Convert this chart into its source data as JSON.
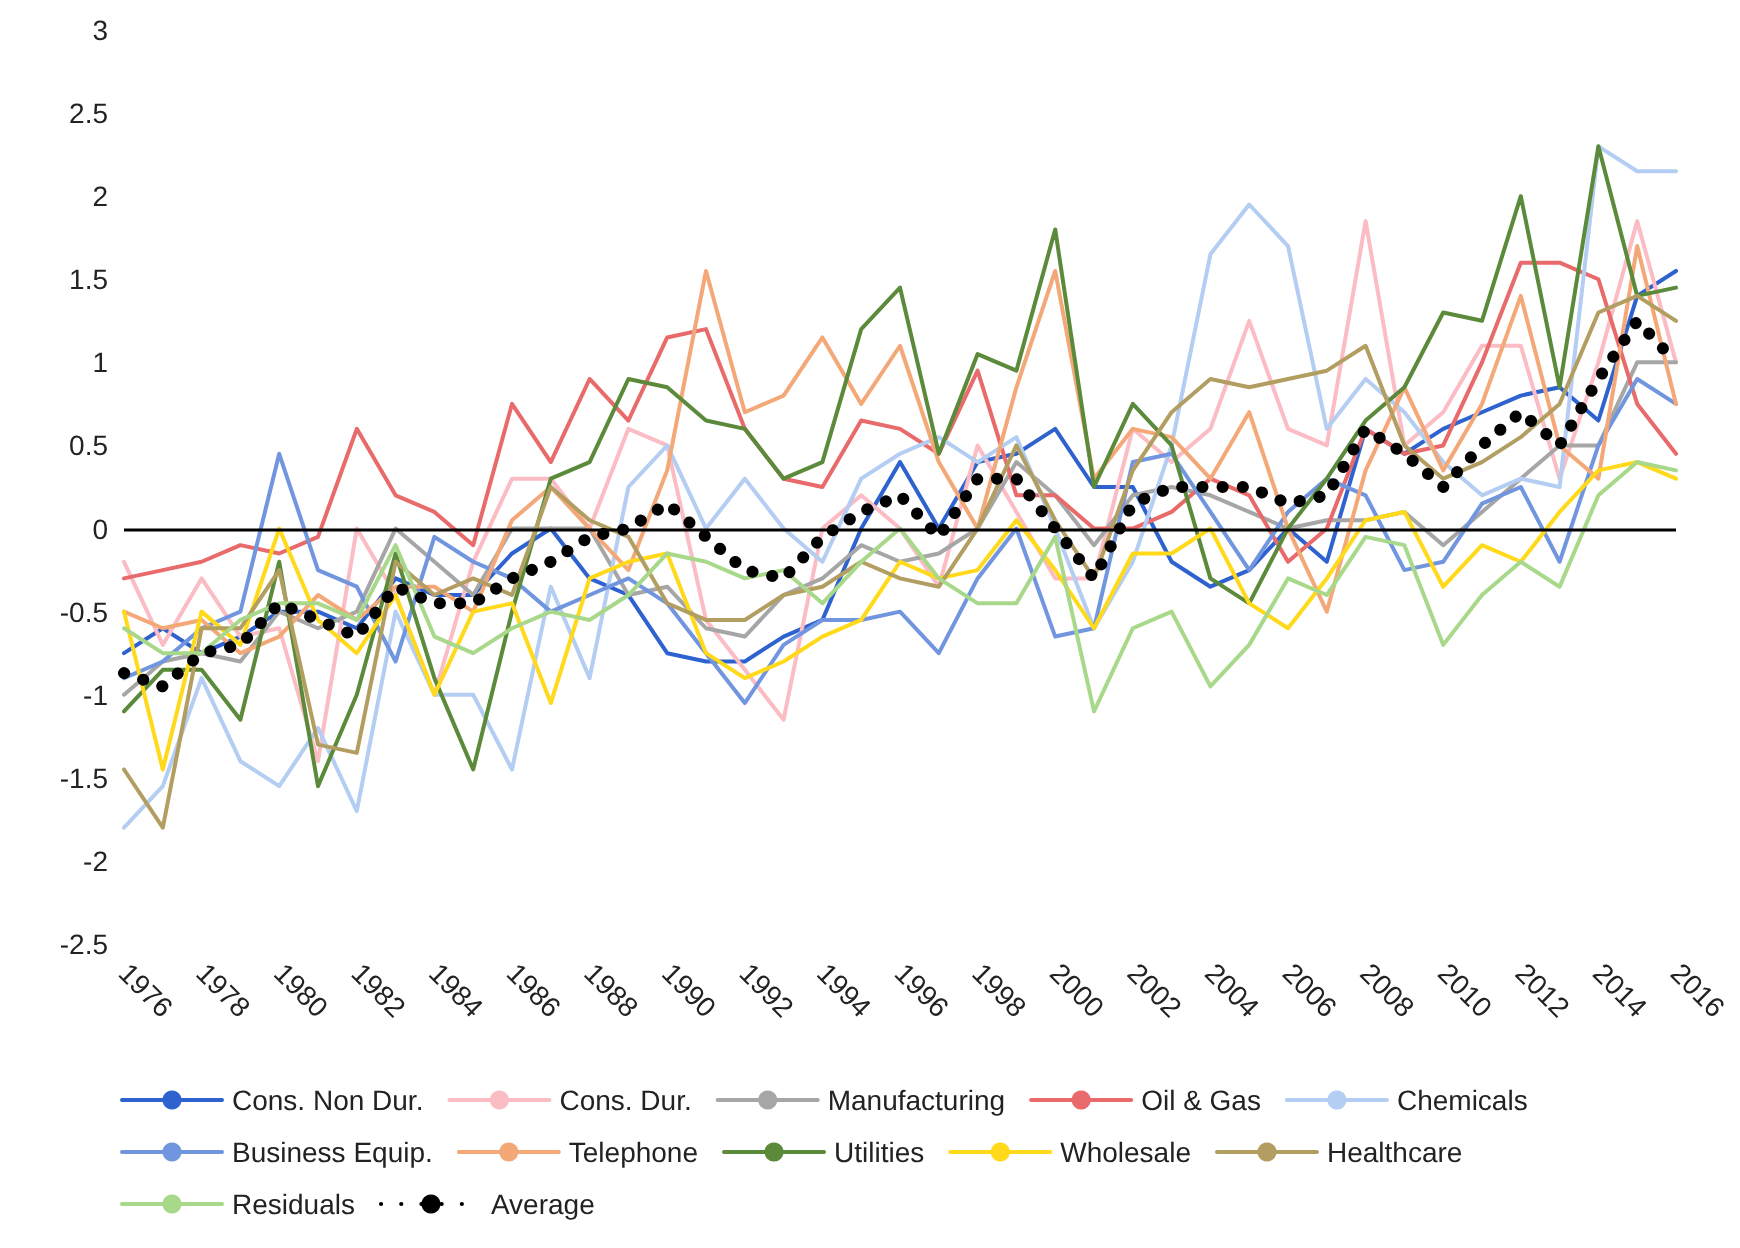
{
  "chart_data": {
    "type": "line",
    "categories": [
      "1976",
      null,
      "1978",
      null,
      "1980",
      null,
      "1982",
      null,
      "1984",
      null,
      "1986",
      null,
      "1988",
      null,
      "1990",
      null,
      "1992",
      null,
      "1994",
      null,
      "1996",
      null,
      "1998",
      null,
      "2000",
      null,
      "2002",
      null,
      "2004",
      null,
      "2006",
      null,
      "2008",
      null,
      "2010",
      null,
      "2012",
      null,
      "2014",
      null,
      "2016"
    ],
    "ylim": [
      -2.5,
      3
    ],
    "yticks": [
      -2.5,
      -2,
      -1.5,
      -1,
      -0.5,
      0,
      0.5,
      1,
      1.5,
      2,
      2.5,
      3
    ],
    "grid": false,
    "legend": "bottom",
    "marker": "none",
    "ref_lines": [
      {
        "axis": "y",
        "value": 0,
        "color": "#000000"
      }
    ],
    "series": [
      {
        "name": "Cons. Non Dur.",
        "color": "#2e62cf",
        "values": [
          -0.75,
          -0.6,
          -0.75,
          -0.65,
          -0.5,
          -0.5,
          -0.6,
          -0.3,
          -0.4,
          -0.4,
          -0.15,
          0.0,
          -0.3,
          -0.4,
          -0.75,
          -0.8,
          -0.8,
          -0.65,
          -0.55,
          0.0,
          0.4,
          0.0,
          0.4,
          0.45,
          0.6,
          0.25,
          0.25,
          -0.2,
          -0.35,
          -0.25,
          0.0,
          -0.2,
          0.6,
          0.45,
          0.6,
          0.7,
          0.8,
          0.85,
          0.65,
          1.4,
          1.55
        ]
      },
      {
        "name": "Cons. Dur.",
        "color": "#fbbcc4",
        "values": [
          -0.2,
          -0.7,
          -0.3,
          -0.65,
          -0.6,
          -1.4,
          0.0,
          -0.4,
          -1.0,
          -0.2,
          0.3,
          0.3,
          0.0,
          0.6,
          0.5,
          -0.55,
          -0.85,
          -1.15,
          0.0,
          0.2,
          0.0,
          -0.35,
          0.5,
          0.1,
          -0.3,
          -0.3,
          0.6,
          0.4,
          0.6,
          1.25,
          0.6,
          0.5,
          1.85,
          0.5,
          0.7,
          1.1,
          1.1,
          0.3,
          1.0,
          1.85,
          1.0
        ]
      },
      {
        "name": "Manufacturing",
        "color": "#a6a6a6",
        "values": [
          -1.0,
          -0.8,
          -0.75,
          -0.8,
          -0.5,
          -0.6,
          -0.5,
          0.0,
          -0.2,
          -0.4,
          0.0,
          0.0,
          0.0,
          -0.4,
          -0.35,
          -0.6,
          -0.65,
          -0.4,
          -0.3,
          -0.1,
          -0.2,
          -0.15,
          0.0,
          0.4,
          0.2,
          -0.1,
          0.2,
          0.25,
          0.2,
          0.1,
          0.0,
          0.05,
          0.05,
          0.1,
          -0.1,
          0.1,
          0.3,
          0.5,
          0.5,
          1.0,
          1.0
        ]
      },
      {
        "name": "Oil & Gas",
        "color": "#e86a6a",
        "values": [
          -0.3,
          -0.25,
          -0.2,
          -0.1,
          -0.15,
          -0.05,
          0.6,
          0.2,
          0.1,
          -0.1,
          0.75,
          0.4,
          0.9,
          0.65,
          1.15,
          1.2,
          0.6,
          0.3,
          0.25,
          0.65,
          0.6,
          0.45,
          0.95,
          0.2,
          0.2,
          0.0,
          0.0,
          0.1,
          0.3,
          0.2,
          -0.2,
          0.0,
          0.6,
          0.45,
          0.5,
          1.0,
          1.6,
          1.6,
          1.5,
          0.75,
          0.45
        ]
      },
      {
        "name": "Chemicals",
        "color": "#b4cdf2",
        "values": [
          -1.8,
          -1.55,
          -0.9,
          -1.4,
          -1.55,
          -1.2,
          -1.7,
          -0.5,
          -1.0,
          -1.0,
          -1.45,
          -0.35,
          -0.9,
          0.25,
          0.5,
          0.0,
          0.3,
          0.0,
          -0.2,
          0.3,
          0.45,
          0.55,
          0.4,
          0.55,
          0.0,
          -0.6,
          -0.2,
          0.5,
          1.65,
          1.95,
          1.7,
          0.6,
          0.9,
          0.7,
          0.4,
          0.2,
          0.3,
          0.25,
          2.3,
          2.15,
          2.15
        ]
      },
      {
        "name": "Business Equip.",
        "color": "#7195de",
        "values": [
          -0.9,
          -0.8,
          -0.6,
          -0.5,
          0.45,
          -0.25,
          -0.35,
          -0.8,
          -0.05,
          -0.2,
          -0.3,
          -0.5,
          -0.4,
          -0.3,
          -0.45,
          -0.75,
          -1.05,
          -0.7,
          -0.55,
          -0.55,
          -0.5,
          -0.75,
          -0.3,
          0.0,
          -0.65,
          -0.6,
          0.4,
          0.45,
          0.1,
          -0.25,
          0.1,
          0.3,
          0.2,
          -0.25,
          -0.2,
          0.15,
          0.25,
          -0.2,
          0.5,
          0.9,
          0.75
        ]
      },
      {
        "name": "Telephone",
        "color": "#f4a878",
        "values": [
          -0.5,
          -0.6,
          -0.55,
          -0.75,
          -0.65,
          -0.4,
          -0.55,
          -0.35,
          -0.35,
          -0.5,
          0.05,
          0.25,
          0.0,
          -0.25,
          0.35,
          1.55,
          0.7,
          0.8,
          1.15,
          0.75,
          1.1,
          0.4,
          0.0,
          0.85,
          1.55,
          0.3,
          0.6,
          0.55,
          0.3,
          0.7,
          0.0,
          -0.5,
          0.35,
          0.85,
          0.35,
          0.75,
          1.4,
          0.5,
          0.3,
          1.7,
          0.75
        ]
      },
      {
        "name": "Utilities",
        "color": "#5a8a3a",
        "values": [
          -1.1,
          -0.85,
          -0.85,
          -1.15,
          -0.2,
          -1.55,
          -1.0,
          -0.15,
          -0.9,
          -1.45,
          -0.5,
          0.3,
          0.4,
          0.9,
          0.85,
          0.65,
          0.6,
          0.3,
          0.4,
          1.2,
          1.45,
          0.45,
          1.05,
          0.95,
          1.8,
          0.25,
          0.75,
          0.5,
          -0.3,
          -0.45,
          0.0,
          0.3,
          0.65,
          0.85,
          1.3,
          1.25,
          2.0,
          0.85,
          2.3,
          1.4,
          1.45
        ]
      },
      {
        "name": "Wholesale",
        "color": "#ffd91a",
        "values": [
          -0.5,
          -1.45,
          -0.5,
          -0.7,
          0.0,
          -0.55,
          -0.75,
          -0.4,
          -1.0,
          -0.5,
          -0.45,
          -1.05,
          -0.3,
          -0.2,
          -0.15,
          -0.75,
          -0.9,
          -0.8,
          -0.65,
          -0.55,
          -0.2,
          -0.3,
          -0.25,
          0.05,
          -0.25,
          -0.6,
          -0.15,
          -0.15,
          0.0,
          -0.45,
          -0.6,
          -0.3,
          0.05,
          0.1,
          -0.35,
          -0.1,
          -0.2,
          0.1,
          0.35,
          0.4,
          0.3
        ]
      },
      {
        "name": "Healthcare",
        "color": "#b39e62",
        "values": [
          -1.45,
          -1.8,
          -0.6,
          -0.6,
          -0.25,
          -1.3,
          -1.35,
          -0.2,
          -0.4,
          -0.3,
          -0.4,
          0.25,
          0.05,
          -0.05,
          -0.45,
          -0.55,
          -0.55,
          -0.4,
          -0.35,
          -0.2,
          -0.3,
          -0.35,
          0.0,
          0.5,
          0.05,
          -0.3,
          0.35,
          0.7,
          0.9,
          0.85,
          0.9,
          0.95,
          1.1,
          0.5,
          0.3,
          0.4,
          0.55,
          0.75,
          1.3,
          1.4,
          1.25
        ]
      },
      {
        "name": "Residuals",
        "color": "#a8d88a",
        "values": [
          -0.6,
          -0.75,
          -0.75,
          -0.55,
          -0.45,
          -0.45,
          -0.55,
          -0.1,
          -0.65,
          -0.75,
          -0.6,
          -0.5,
          -0.55,
          -0.4,
          -0.15,
          -0.2,
          -0.3,
          -0.25,
          -0.45,
          -0.2,
          0.0,
          -0.3,
          -0.45,
          -0.45,
          -0.05,
          -1.1,
          -0.6,
          -0.5,
          -0.95,
          -0.7,
          -0.3,
          -0.4,
          -0.05,
          -0.1,
          -0.7,
          -0.4,
          -0.2,
          -0.35,
          0.2,
          0.4,
          0.35
        ]
      },
      {
        "name": "Average",
        "color": "#000000",
        "line_style": "dotted",
        "values": [
          -0.87,
          -0.95,
          -0.75,
          -0.7,
          -0.45,
          -0.55,
          -0.65,
          -0.35,
          -0.45,
          -0.45,
          -0.3,
          -0.2,
          -0.05,
          0.0,
          0.15,
          -0.05,
          -0.25,
          -0.3,
          -0.05,
          0.1,
          0.2,
          -0.05,
          0.3,
          0.3,
          0.0,
          -0.3,
          0.15,
          0.25,
          0.25,
          0.25,
          0.15,
          0.2,
          0.6,
          0.45,
          0.25,
          0.5,
          0.7,
          0.5,
          0.9,
          1.25,
          1.0
        ]
      }
    ]
  }
}
